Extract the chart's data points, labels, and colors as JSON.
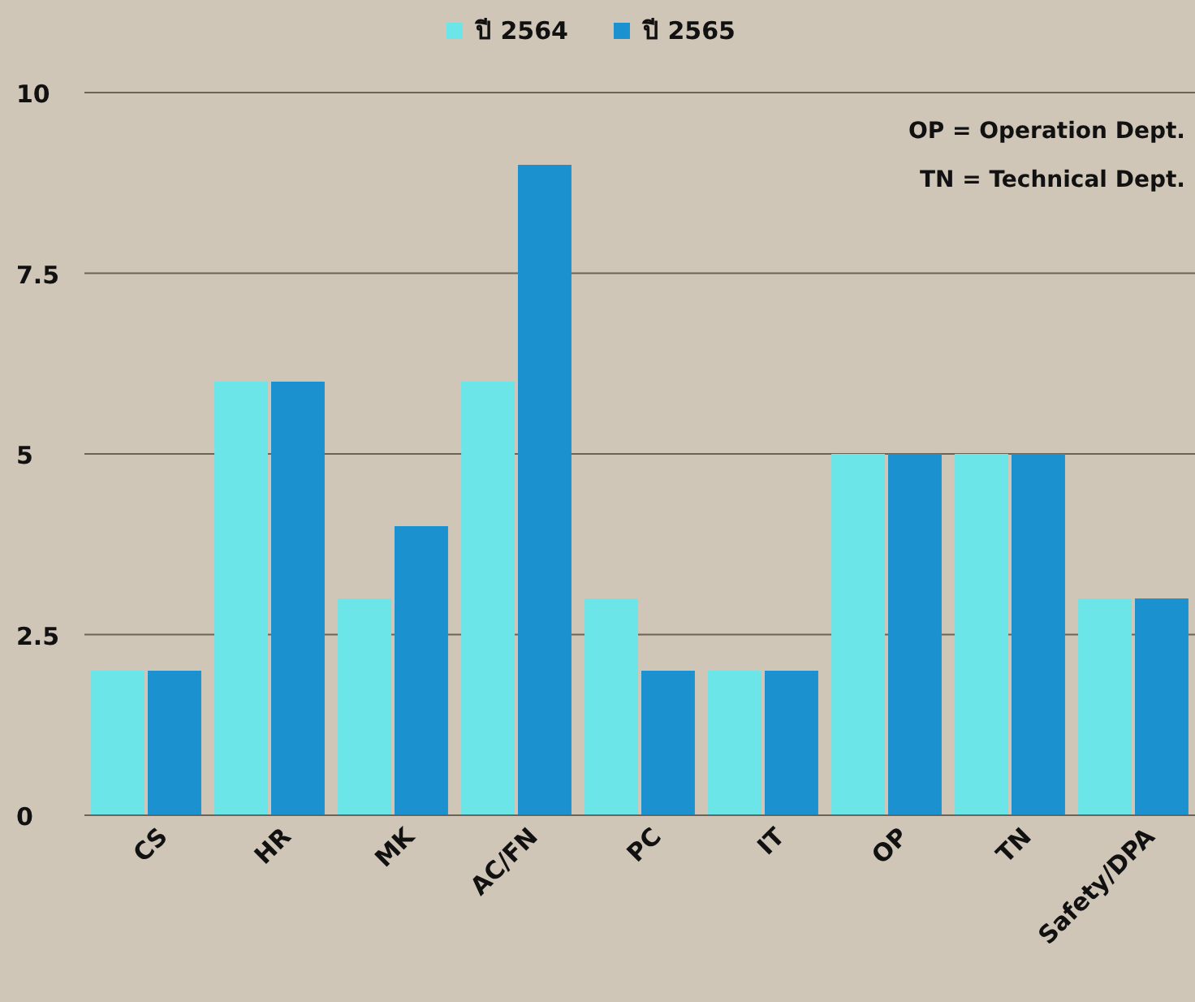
{
  "chart_data": {
    "type": "bar",
    "categories": [
      "CS",
      "HR",
      "MK",
      "AC/FN",
      "PC",
      "IT",
      "OP",
      "TN",
      "Safety/DPA"
    ],
    "series": [
      {
        "name": "ปี 2564",
        "color": "#6ce5e8",
        "values": [
          2,
          6,
          3,
          6,
          3,
          2,
          5,
          5,
          3
        ]
      },
      {
        "name": "ปี 2565",
        "color": "#1b91d0",
        "values": [
          2,
          6,
          4,
          9,
          2,
          2,
          5,
          5,
          3
        ]
      }
    ],
    "ylim": [
      0,
      10
    ],
    "yticks": [
      0,
      2.5,
      5,
      7.5,
      10
    ],
    "grid": "y",
    "legend": "top",
    "annotations": [
      "OP = Operation Dept.",
      "TN = Technical Dept."
    ]
  }
}
